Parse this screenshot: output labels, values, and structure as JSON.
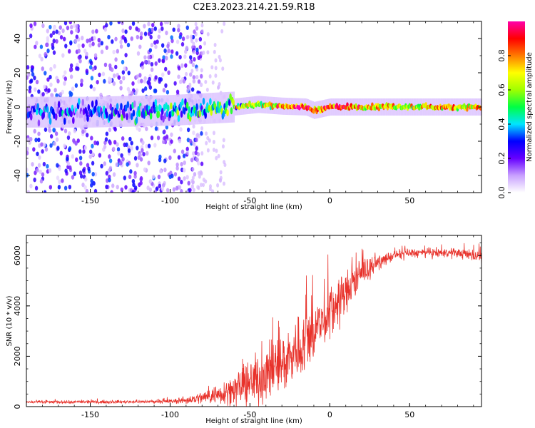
{
  "figure": {
    "title": "C2E3.2023.214.21.59.R18"
  },
  "chart_data": [
    {
      "type": "heatmap",
      "name": "spectrogram",
      "xlabel": "Height of straight line (km)",
      "ylabel": "Frequency (Hz)",
      "xlim": [
        -190,
        95
      ],
      "ylim": [
        -50,
        50
      ],
      "x_ticks": [
        -150,
        -100,
        -50,
        0,
        50
      ],
      "x_tick_labels": [
        "-150",
        "-100",
        "-50",
        "0",
        "50"
      ],
      "y_ticks": [
        -40,
        -20,
        0,
        20,
        40
      ],
      "y_tick_labels": [
        "-40",
        "-20",
        "0",
        "20",
        "40"
      ],
      "colorbar": {
        "label": "Normalized spectral amplitude",
        "range": [
          0,
          1
        ],
        "ticks": [
          0.0,
          0.2,
          0.4,
          0.6,
          0.8
        ],
        "tick_labels": [
          "0.0",
          "0.2",
          "0.4",
          "0.6",
          "0.8"
        ],
        "colors": [
          "#ffffff",
          "#c8a0ff",
          "#6600ff",
          "#0000ff",
          "#00e5ff",
          "#00ff44",
          "#a0ff00",
          "#ffff00",
          "#ff7a00",
          "#ff0000",
          "#ff00aa"
        ]
      },
      "ridge": {
        "description_points": [
          {
            "x": -190,
            "f": -3,
            "amp": 0.25
          },
          {
            "x": -150,
            "f": -3,
            "amp": 0.25
          },
          {
            "x": -100,
            "f": -2,
            "amp": 0.35
          },
          {
            "x": -80,
            "f": -1,
            "amp": 0.45
          },
          {
            "x": -60,
            "f": 0,
            "amp": 0.5
          },
          {
            "x": -45,
            "f": 1.5,
            "amp": 0.6
          },
          {
            "x": -30,
            "f": 0.5,
            "amp": 0.8
          },
          {
            "x": -15,
            "f": 0,
            "amp": 0.85
          },
          {
            "x": -10,
            "f": -2,
            "amp": 0.8
          },
          {
            "x": 0,
            "f": 0,
            "amp": 0.85
          },
          {
            "x": 20,
            "f": 0,
            "amp": 0.8
          },
          {
            "x": 50,
            "f": 0,
            "amp": 0.7
          },
          {
            "x": 95,
            "f": 0,
            "amp": 0.7
          }
        ]
      }
    },
    {
      "type": "line",
      "name": "snr",
      "xlabel": "Height of straight line (km)",
      "ylabel": "SNR (10 * v/v)",
      "xlim": [
        -190,
        95
      ],
      "ylim": [
        0,
        6800
      ],
      "x_ticks": [
        -150,
        -100,
        -50,
        0,
        50
      ],
      "x_tick_labels": [
        "-150",
        "-100",
        "-50",
        "0",
        "50"
      ],
      "y_ticks": [
        0,
        2000,
        4000,
        6000
      ],
      "y_tick_labels": [
        "0",
        "2000",
        "4000",
        "6000"
      ],
      "color": "#e8322b",
      "series_envelope": {
        "x": [
          -190,
          -150,
          -110,
          -100,
          -90,
          -80,
          -70,
          -60,
          -50,
          -40,
          -30,
          -20,
          -10,
          0,
          10,
          20,
          30,
          40,
          50,
          60,
          70,
          80,
          90,
          95
        ],
        "mean": [
          180,
          180,
          200,
          200,
          250,
          350,
          500,
          700,
          900,
          1300,
          1700,
          2300,
          3000,
          3700,
          4500,
          5300,
          5700,
          6000,
          6100,
          6100,
          6100,
          6100,
          6000,
          6000
        ],
        "spread": [
          60,
          60,
          60,
          80,
          150,
          250,
          400,
          600,
          900,
          1100,
          1200,
          1300,
          1200,
          1100,
          900,
          500,
          250,
          200,
          180,
          180,
          180,
          180,
          220,
          350
        ]
      }
    }
  ]
}
